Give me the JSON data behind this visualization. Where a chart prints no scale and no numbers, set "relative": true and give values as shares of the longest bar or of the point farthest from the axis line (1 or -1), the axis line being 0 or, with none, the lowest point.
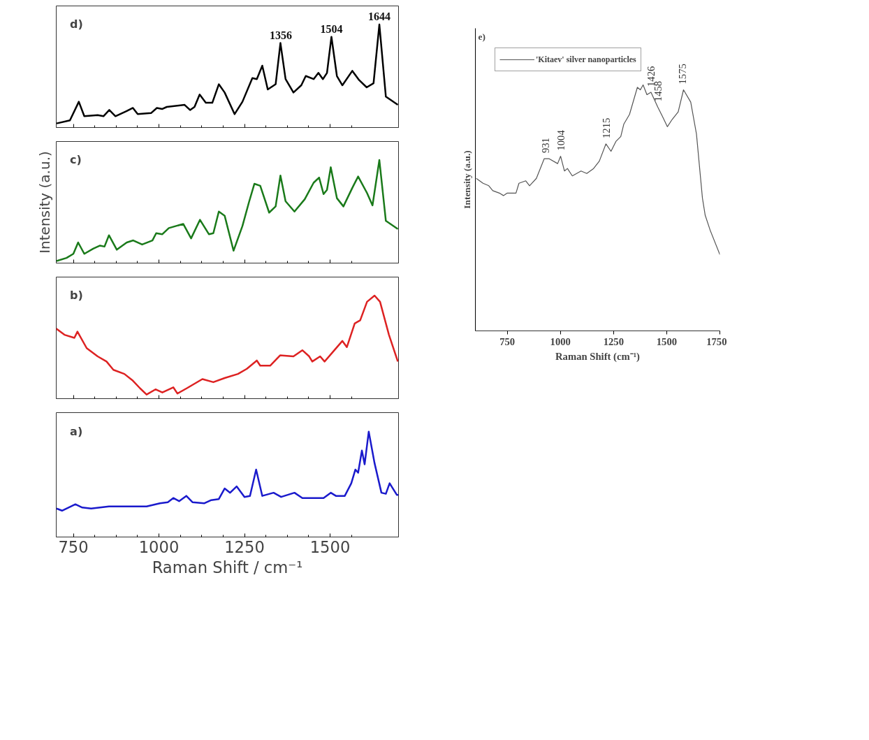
{
  "chart_data": [
    {
      "type": "line",
      "relative": true,
      "xlim": [
        700,
        1700
      ],
      "xticks": [
        750,
        1000,
        1250,
        1500
      ],
      "tick_labels": false,
      "annotations": [
        "d)",
        {
          "text": "1356",
          "x": 1356,
          "y": 0.82
        },
        {
          "text": "1504",
          "x": 1504,
          "y": 0.88
        },
        {
          "text": "1644",
          "x": 1644,
          "y": 1.0
        }
      ],
      "series": [
        {
          "color": "#000000",
          "x": [
            701,
            740,
            766,
            782,
            821,
            838,
            855,
            873,
            906,
            924,
            938,
            977,
            994,
            1010,
            1023,
            1075,
            1091,
            1104,
            1119,
            1137,
            1156,
            1175,
            1192,
            1221,
            1244,
            1273,
            1286,
            1302,
            1318,
            1341,
            1355,
            1370,
            1393,
            1416,
            1429,
            1452,
            1466,
            1479,
            1491,
            1504,
            1520,
            1536,
            1565,
            1585,
            1607,
            1627,
            1644,
            1663,
            1698
          ],
          "values": [
            0.04,
            0.07,
            0.25,
            0.11,
            0.12,
            0.11,
            0.17,
            0.11,
            0.16,
            0.19,
            0.13,
            0.14,
            0.19,
            0.18,
            0.2,
            0.22,
            0.17,
            0.2,
            0.32,
            0.24,
            0.24,
            0.42,
            0.34,
            0.13,
            0.25,
            0.48,
            0.47,
            0.6,
            0.37,
            0.42,
            0.82,
            0.47,
            0.34,
            0.41,
            0.5,
            0.47,
            0.53,
            0.47,
            0.53,
            0.88,
            0.5,
            0.41,
            0.55,
            0.46,
            0.39,
            0.43,
            1.0,
            0.3,
            0.22
          ]
        }
      ]
    },
    {
      "type": "line",
      "relative": true,
      "xlim": [
        700,
        1700
      ],
      "xticks": [
        750,
        1000,
        1250,
        1500
      ],
      "tick_labels": false,
      "ylabel": "Intensity (a.u.)",
      "annotations": [
        "c)"
      ],
      "series": [
        {
          "color": "#1a7a1a",
          "x": [
            701,
            730,
            750,
            764,
            782,
            808,
            828,
            841,
            854,
            877,
            906,
            925,
            951,
            981,
            992,
            1010,
            1029,
            1071,
            1094,
            1120,
            1146,
            1159,
            1175,
            1192,
            1218,
            1244,
            1263,
            1279,
            1296,
            1322,
            1341,
            1355,
            1370,
            1396,
            1426,
            1452,
            1468,
            1481,
            1491,
            1502,
            1520,
            1539,
            1565,
            1582,
            1608,
            1624,
            1644,
            1663,
            1698
          ],
          "values": [
            0.02,
            0.05,
            0.09,
            0.2,
            0.09,
            0.14,
            0.17,
            0.16,
            0.27,
            0.13,
            0.2,
            0.22,
            0.18,
            0.22,
            0.29,
            0.28,
            0.34,
            0.38,
            0.24,
            0.42,
            0.28,
            0.29,
            0.5,
            0.46,
            0.12,
            0.36,
            0.59,
            0.77,
            0.75,
            0.49,
            0.55,
            0.85,
            0.6,
            0.5,
            0.62,
            0.78,
            0.83,
            0.67,
            0.71,
            0.93,
            0.63,
            0.55,
            0.73,
            0.84,
            0.68,
            0.56,
            1.0,
            0.41,
            0.33
          ]
        }
      ]
    },
    {
      "type": "line",
      "relative": true,
      "xlim": [
        700,
        1700
      ],
      "xticks": [
        750,
        1000,
        1250,
        1500
      ],
      "tick_labels": false,
      "annotations": [
        "b)"
      ],
      "series": [
        {
          "color": "#dd2222",
          "x": [
            700,
            724,
            753,
            762,
            789,
            821,
            847,
            867,
            899,
            922,
            945,
            964,
            990,
            1010,
            1042,
            1054,
            1081,
            1127,
            1159,
            1192,
            1231,
            1257,
            1286,
            1296,
            1325,
            1354,
            1393,
            1419,
            1439,
            1448,
            1471,
            1484,
            1510,
            1536,
            1549,
            1572,
            1588,
            1608,
            1630,
            1646,
            1672,
            1698
          ],
          "values": [
            0.68,
            0.62,
            0.59,
            0.65,
            0.49,
            0.41,
            0.36,
            0.28,
            0.24,
            0.18,
            0.1,
            0.04,
            0.09,
            0.06,
            0.11,
            0.05,
            0.1,
            0.19,
            0.16,
            0.2,
            0.24,
            0.29,
            0.37,
            0.32,
            0.32,
            0.42,
            0.41,
            0.47,
            0.41,
            0.36,
            0.41,
            0.36,
            0.46,
            0.56,
            0.5,
            0.73,
            0.76,
            0.94,
            1.0,
            0.94,
            0.62,
            0.36
          ]
        }
      ]
    },
    {
      "type": "line",
      "relative": true,
      "xlim": [
        700,
        1700
      ],
      "xticks": [
        750,
        1000,
        1250,
        1500
      ],
      "tick_labels": "x",
      "xlabel": "Raman Shift / cm⁻¹",
      "annotations": [
        "a)"
      ],
      "series": [
        {
          "color": "#1a1acc",
          "x": [
            701,
            717,
            756,
            776,
            802,
            854,
            919,
            964,
            1003,
            1026,
            1042,
            1059,
            1080,
            1098,
            1133,
            1153,
            1175,
            1192,
            1208,
            1227,
            1250,
            1266,
            1284,
            1302,
            1335,
            1357,
            1396,
            1419,
            1458,
            1481,
            1502,
            1517,
            1543,
            1562,
            1574,
            1582,
            1593,
            1601,
            1613,
            1630,
            1650,
            1663,
            1674,
            1695,
            1700
          ],
          "values": [
            0.27,
            0.25,
            0.31,
            0.28,
            0.27,
            0.29,
            0.29,
            0.29,
            0.32,
            0.33,
            0.37,
            0.34,
            0.39,
            0.33,
            0.32,
            0.35,
            0.36,
            0.46,
            0.42,
            0.48,
            0.38,
            0.39,
            0.64,
            0.39,
            0.42,
            0.38,
            0.42,
            0.37,
            0.37,
            0.37,
            0.42,
            0.39,
            0.39,
            0.51,
            0.64,
            0.61,
            0.82,
            0.69,
            1.0,
            0.7,
            0.42,
            0.41,
            0.51,
            0.4,
            0.4
          ]
        }
      ]
    },
    {
      "type": "line",
      "relative": true,
      "xlim": [
        600,
        1750
      ],
      "xticks": [
        750,
        1000,
        1250,
        1500,
        1750
      ],
      "tick_labels": "x",
      "xlabel": "Raman Shift (cm⁻¹)",
      "ylabel": "Intensity (a.u.)",
      "legend": "top left",
      "annotations": [
        "e)",
        {
          "text": "931",
          "x": 931,
          "y": 0.7
        },
        {
          "text": "1004",
          "x": 1004,
          "y": 0.71
        },
        {
          "text": "1215",
          "x": 1215,
          "y": 0.76
        },
        {
          "text": "1426",
          "x": 1426,
          "y": 0.97
        },
        {
          "text": "1458",
          "x": 1458,
          "y": 0.91
        },
        {
          "text": "1575",
          "x": 1575,
          "y": 0.98
        }
      ],
      "series": [
        {
          "name": "'Kitaev' silver nanoparticles",
          "color": "#555555",
          "x": [
            604,
            636,
            663,
            682,
            713,
            732,
            750,
            791,
            805,
            837,
            855,
            887,
            924,
            946,
            987,
            1001,
            1019,
            1033,
            1056,
            1097,
            1124,
            1156,
            1183,
            1214,
            1238,
            1261,
            1284,
            1298,
            1325,
            1362,
            1376,
            1389,
            1407,
            1426,
            1458,
            1481,
            1503,
            1526,
            1554,
            1579,
            1613,
            1640,
            1668,
            1681,
            1704,
            1750
          ],
          "values": [
            0.62,
            0.6,
            0.59,
            0.57,
            0.56,
            0.55,
            0.56,
            0.56,
            0.6,
            0.61,
            0.59,
            0.62,
            0.7,
            0.7,
            0.68,
            0.71,
            0.65,
            0.66,
            0.63,
            0.65,
            0.64,
            0.66,
            0.69,
            0.76,
            0.73,
            0.77,
            0.79,
            0.84,
            0.88,
            0.99,
            0.98,
            1.0,
            0.96,
            0.97,
            0.91,
            0.87,
            0.83,
            0.86,
            0.89,
            0.98,
            0.93,
            0.8,
            0.54,
            0.47,
            0.41,
            0.31
          ]
        }
      ]
    }
  ]
}
